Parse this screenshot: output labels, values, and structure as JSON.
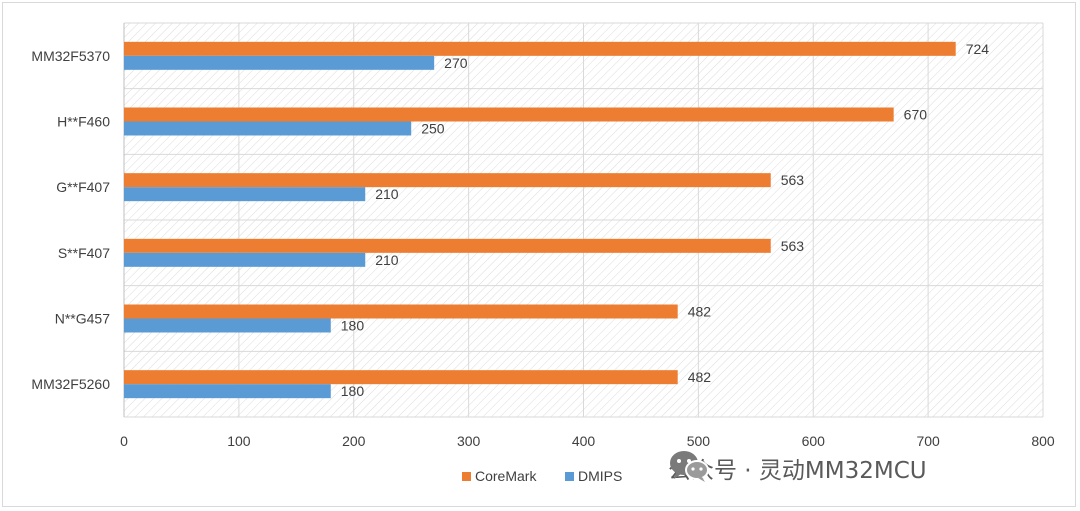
{
  "chart_data": {
    "type": "bar",
    "orientation": "horizontal",
    "categories": [
      "MM32F5370",
      "H**F460",
      "G**F407",
      "S**F407",
      "N**G457",
      "MM32F5260"
    ],
    "series": [
      {
        "name": "CoreMark",
        "values": [
          724,
          670,
          563,
          563,
          482,
          482
        ],
        "color": "#ed7d31"
      },
      {
        "name": "DMIPS",
        "values": [
          270,
          250,
          210,
          210,
          180,
          180
        ],
        "color": "#5b9bd5"
      }
    ],
    "xlim": [
      0,
      800
    ],
    "xticks": [
      0,
      100,
      200,
      300,
      400,
      500,
      600,
      700,
      800
    ],
    "grid": true,
    "legend_position": "bottom",
    "data_labels": true
  },
  "watermark": {
    "icon": "wechat-icon",
    "text": "公众号 · 灵动MM32MCU"
  }
}
